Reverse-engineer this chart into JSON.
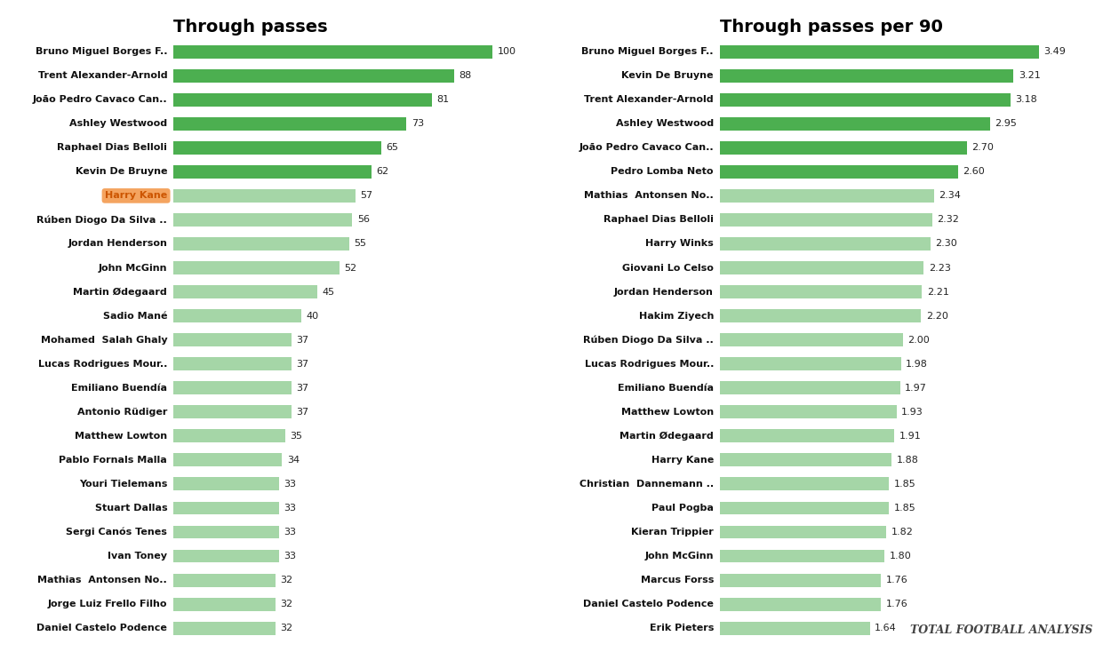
{
  "left_title": "Through passes",
  "right_title": "Through passes per 90",
  "left_players": [
    "Bruno Miguel Borges F..",
    "Trent Alexander-Arnold",
    "João Pedro Cavaco Can..",
    "Ashley Westwood",
    "Raphael Dias Belloli",
    "Kevin De Bruyne",
    "Harry Kane",
    "Rúben Diogo Da Silva ..",
    "Jordan Henderson",
    "John McGinn",
    "Martin Ødegaard",
    "Sadio Mané",
    "Mohamed  Salah Ghaly",
    "Lucas Rodrigues Mour..",
    "Emiliano Buendía",
    "Antonio Rüdiger",
    "Matthew Lowton",
    "Pablo Fornals Malla",
    "Youri Tielemans",
    "Stuart Dallas",
    "Sergi Canós Tenes",
    "Ivan Toney",
    "Mathias  Antonsen No..",
    "Jorge Luiz Frello Filho",
    "Daniel Castelo Podence"
  ],
  "left_values": [
    100,
    88,
    81,
    73,
    65,
    62,
    57,
    56,
    55,
    52,
    45,
    40,
    37,
    37,
    37,
    37,
    35,
    34,
    33,
    33,
    33,
    33,
    32,
    32,
    32
  ],
  "left_highlighted": [
    6
  ],
  "right_players": [
    "Bruno Miguel Borges F..",
    "Kevin De Bruyne",
    "Trent Alexander-Arnold",
    "Ashley Westwood",
    "João Pedro Cavaco Can..",
    "Pedro Lomba Neto",
    "Mathias  Antonsen No..",
    "Raphael Dias Belloli",
    "Harry Winks",
    "Giovani Lo Celso",
    "Jordan Henderson",
    "Hakim Ziyech",
    "Rúben Diogo Da Silva ..",
    "Lucas Rodrigues Mour..",
    "Emiliano Buendía",
    "Matthew Lowton",
    "Martin Ødegaard",
    "Harry Kane",
    "Christian  Dannemann ..",
    "Paul Pogba",
    "Kieran Trippier",
    "John McGinn",
    "Marcus Forss",
    "Daniel Castelo Podence",
    "Erik Pieters"
  ],
  "right_values": [
    3.49,
    3.21,
    3.18,
    2.95,
    2.7,
    2.6,
    2.34,
    2.32,
    2.3,
    2.23,
    2.21,
    2.2,
    2.0,
    1.98,
    1.97,
    1.93,
    1.91,
    1.88,
    1.85,
    1.85,
    1.82,
    1.8,
    1.76,
    1.76,
    1.64
  ],
  "bar_color_top": "#4caf50",
  "bar_color_light": "#a5d6a7",
  "highlight_color": "#f4a460",
  "highlight_text_color": "#cc5500",
  "title_fontsize": 14,
  "label_fontsize": 8,
  "value_fontsize": 8,
  "watermark": "TOTAL FOOTBALL ANALYSIS"
}
